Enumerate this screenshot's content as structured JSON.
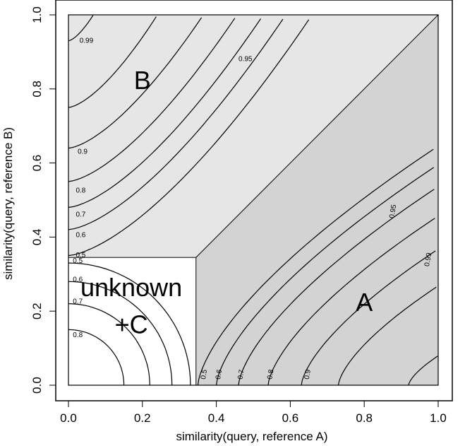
{
  "chart_data": {
    "type": "contour",
    "xlabel": "similarity(query, reference A)",
    "ylabel": "similarity(query, reference B)",
    "xlim": [
      0,
      1
    ],
    "ylim": [
      0,
      1
    ],
    "x_ticks": [
      "0.0",
      "0.2",
      "0.4",
      "0.6",
      "0.8",
      "1.0"
    ],
    "y_ticks": [
      "0.0",
      "0.2",
      "0.4",
      "0.6",
      "0.8",
      "1.0"
    ],
    "unknown_threshold": 0.345,
    "regions": [
      {
        "label": "B",
        "color": "#e6e6e6",
        "label_at": [
          0.2,
          0.8
        ]
      },
      {
        "label": "A",
        "color": "#d3d3d3",
        "label_at": [
          0.8,
          0.2
        ]
      },
      {
        "label": "unknown",
        "color": "#ffffff",
        "label_at": [
          0.17,
          0.24
        ]
      },
      {
        "label": "+C",
        "color": "#ffffff",
        "label_at": [
          0.17,
          0.14
        ]
      }
    ],
    "contour_levels": [
      0.5,
      0.6,
      0.7,
      0.8,
      0.9,
      0.95,
      0.99
    ],
    "contour_labels": {
      "B": [
        "0.99",
        "0.95",
        "0.9",
        "0.8",
        "0.7",
        "0.6",
        "0.5"
      ],
      "A": [
        "0.5",
        "0.6",
        "0.7",
        "0.8",
        "0.9",
        "0.95",
        "0.99"
      ],
      "unknown": [
        "0.5",
        "0.6",
        "0.7",
        "0.8"
      ]
    }
  }
}
